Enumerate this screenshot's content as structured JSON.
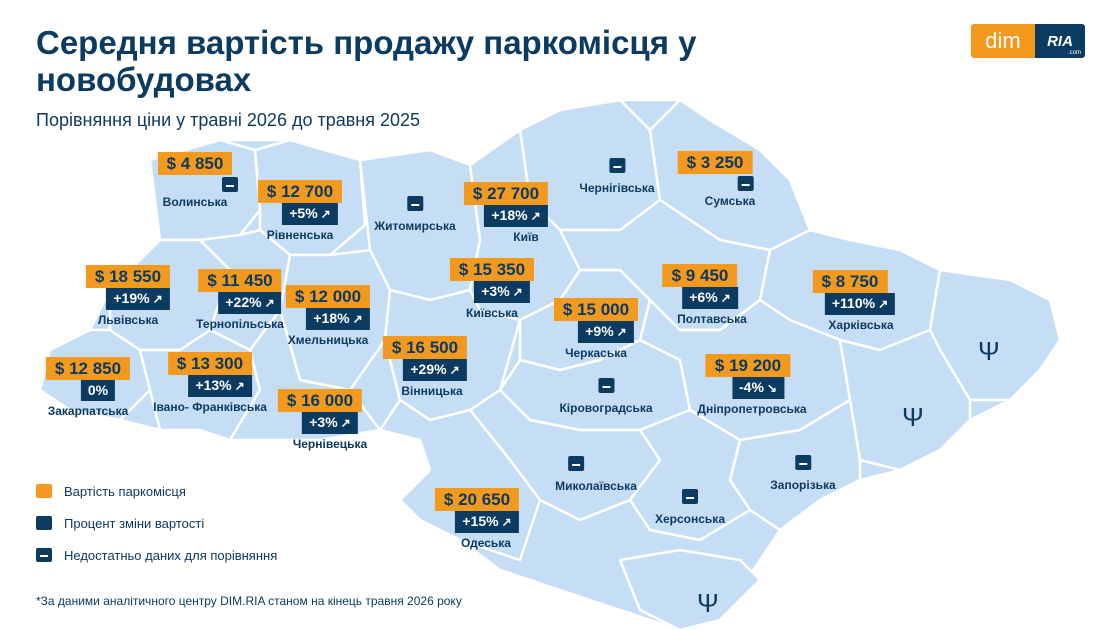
{
  "header": {
    "title": "Середня вартість продажу паркомісця у новобудовах",
    "subtitle": "Порівняння ціни у травні 2026 до травня 2025"
  },
  "logo": {
    "dim": "dim",
    "ria": "RIA",
    "ria_suffix": ".com"
  },
  "colors": {
    "price": "#f39a1e",
    "change": "#0c3b61",
    "map_fill": "#c6def5",
    "map_border": "#ffffff"
  },
  "regions": {
    "volynska": {
      "name": "Волинська",
      "price": "$ 4 850"
    },
    "rivnenska": {
      "name": "Рівненська",
      "price": "$ 12 700",
      "change": "+5%",
      "trend": "up"
    },
    "zhytomyrska": {
      "name": "Житомирська"
    },
    "kyiv": {
      "name": "Київ",
      "price": "$ 27 700",
      "change": "+18%",
      "trend": "up"
    },
    "chernihivska": {
      "name": "Чернігівська"
    },
    "sumska": {
      "name": "Сумська",
      "price": "$ 3 250"
    },
    "lvivska": {
      "name": "Львівська",
      "price": "$ 18 550",
      "change": "+19%",
      "trend": "up"
    },
    "ternopilska": {
      "name": "Тернопільська",
      "price": "$ 11 450",
      "change": "+22%",
      "trend": "up"
    },
    "khmelnytska": {
      "name": "Хмельницька",
      "price": "$ 12 000",
      "change": "+18%",
      "trend": "up"
    },
    "kyivska": {
      "name": "Київська",
      "price": "$ 15 350",
      "change": "+3%",
      "trend": "up"
    },
    "poltavska": {
      "name": "Полтавська",
      "price": "$ 9 450",
      "change": "+6%",
      "trend": "up"
    },
    "kharkivska": {
      "name": "Харківська",
      "price": "$ 8 750",
      "change": "+110%",
      "trend": "up"
    },
    "cherkaska": {
      "name": "Черкаська",
      "price": "$ 15 000",
      "change": "+9%",
      "trend": "up"
    },
    "vinnytska": {
      "name": "Вінницька",
      "price": "$ 16 500",
      "change": "+29%",
      "trend": "up"
    },
    "zakarpatska": {
      "name": "Закарпатська",
      "price": "$ 12 850",
      "change": "0%"
    },
    "ivano_frankivska": {
      "name": "Івано- Франківська",
      "price": "$ 13 300",
      "change": "+13%",
      "trend": "up"
    },
    "chernivetska": {
      "name": "Чернівецька",
      "price": "$ 16 000",
      "change": "+3%",
      "trend": "up"
    },
    "kirovohradska": {
      "name": "Кіровоградська"
    },
    "dnipropetrovska": {
      "name": "Дніпропетровська",
      "price": "$ 19 200",
      "change": "-4%",
      "trend": "down"
    },
    "mykolaivska": {
      "name": "Миколаївська"
    },
    "zaporizka": {
      "name": "Запорізька"
    },
    "khersonska": {
      "name": "Херсонська"
    },
    "odeska": {
      "name": "Одеська",
      "price": "$ 20 650",
      "change": "+15%",
      "trend": "up"
    }
  },
  "legend": {
    "price_label": "Вартість паркомісця",
    "change_label": "Процент зміни вартості",
    "nodata_label": "Недостатньо даних для порівняння"
  },
  "icons": {
    "up": "arrow-up-right-icon",
    "down": "arrow-down-right-icon",
    "trident": "trident-icon"
  },
  "footnote": "*За даними аналітичного центру DIM.RIA станом на кінець травня 2026 року"
}
